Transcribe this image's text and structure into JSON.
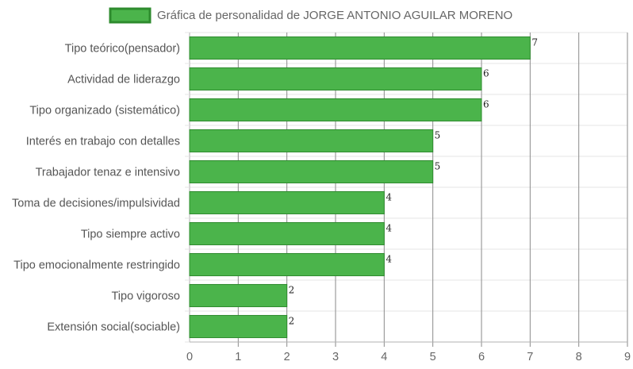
{
  "chart_data": {
    "type": "bar",
    "orientation": "horizontal",
    "legend": "top-center",
    "grid": true,
    "categories": [
      "Tipo teórico(pensador)",
      "Actividad de liderazgo",
      "Tipo organizado (sistemático)",
      "Interés en trabajo con detalles",
      "Trabajador tenaz e intensivo",
      "Toma de decisiones/impulsividad",
      "Tipo siempre activo",
      "Tipo emocionalmente restringido",
      "Tipo vigoroso",
      "Extensión social(sociable)"
    ],
    "series": [
      {
        "name": "Gráfica de personalidad de JORGE ANTONIO AGUILAR MORENO",
        "values": [
          7,
          6,
          6,
          5,
          5,
          4,
          4,
          4,
          2,
          2
        ],
        "color": "#4bb44b",
        "border_color": "#2e8b2e"
      }
    ],
    "xlim": [
      0,
      9
    ],
    "xticks": [
      0,
      1,
      2,
      3,
      4,
      5,
      6,
      7,
      8,
      9
    ],
    "data_labels": true
  }
}
